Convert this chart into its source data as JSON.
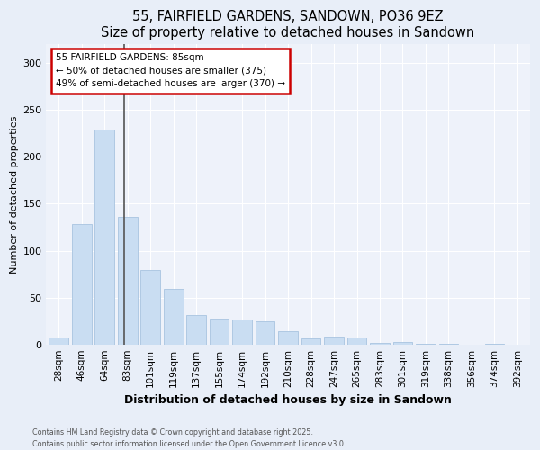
{
  "title": "55, FAIRFIELD GARDENS, SANDOWN, PO36 9EZ",
  "subtitle": "Size of property relative to detached houses in Sandown",
  "xlabel": "Distribution of detached houses by size in Sandown",
  "ylabel": "Number of detached properties",
  "categories": [
    "28sqm",
    "46sqm",
    "64sqm",
    "83sqm",
    "101sqm",
    "119sqm",
    "137sqm",
    "155sqm",
    "174sqm",
    "192sqm",
    "210sqm",
    "228sqm",
    "247sqm",
    "265sqm",
    "283sqm",
    "301sqm",
    "319sqm",
    "338sqm",
    "356sqm",
    "374sqm",
    "392sqm"
  ],
  "values": [
    8,
    128,
    229,
    136,
    80,
    59,
    32,
    28,
    27,
    25,
    14,
    7,
    9,
    8,
    2,
    3,
    1,
    1,
    0,
    1,
    0
  ],
  "bar_color": "#c9ddf2",
  "bar_edge_color": "#a8c4e0",
  "vline_color": "#555555",
  "annotation_text": "55 FAIRFIELD GARDENS: 85sqm\n← 50% of detached houses are smaller (375)\n49% of semi-detached houses are larger (370) →",
  "annotation_box_color": "#ffffff",
  "annotation_box_edge": "#cc0000",
  "ylim": [
    0,
    320
  ],
  "yticks": [
    0,
    50,
    100,
    150,
    200,
    250,
    300
  ],
  "footer_line1": "Contains HM Land Registry data © Crown copyright and database right 2025.",
  "footer_line2": "Contains public sector information licensed under the Open Government Licence v3.0.",
  "bg_color": "#e8eef8",
  "plot_bg_color": "#eef2fa",
  "grid_color": "#ffffff",
  "title_fontsize": 10.5,
  "ylabel_fontsize": 8,
  "xlabel_fontsize": 9,
  "tick_fontsize": 7.5
}
